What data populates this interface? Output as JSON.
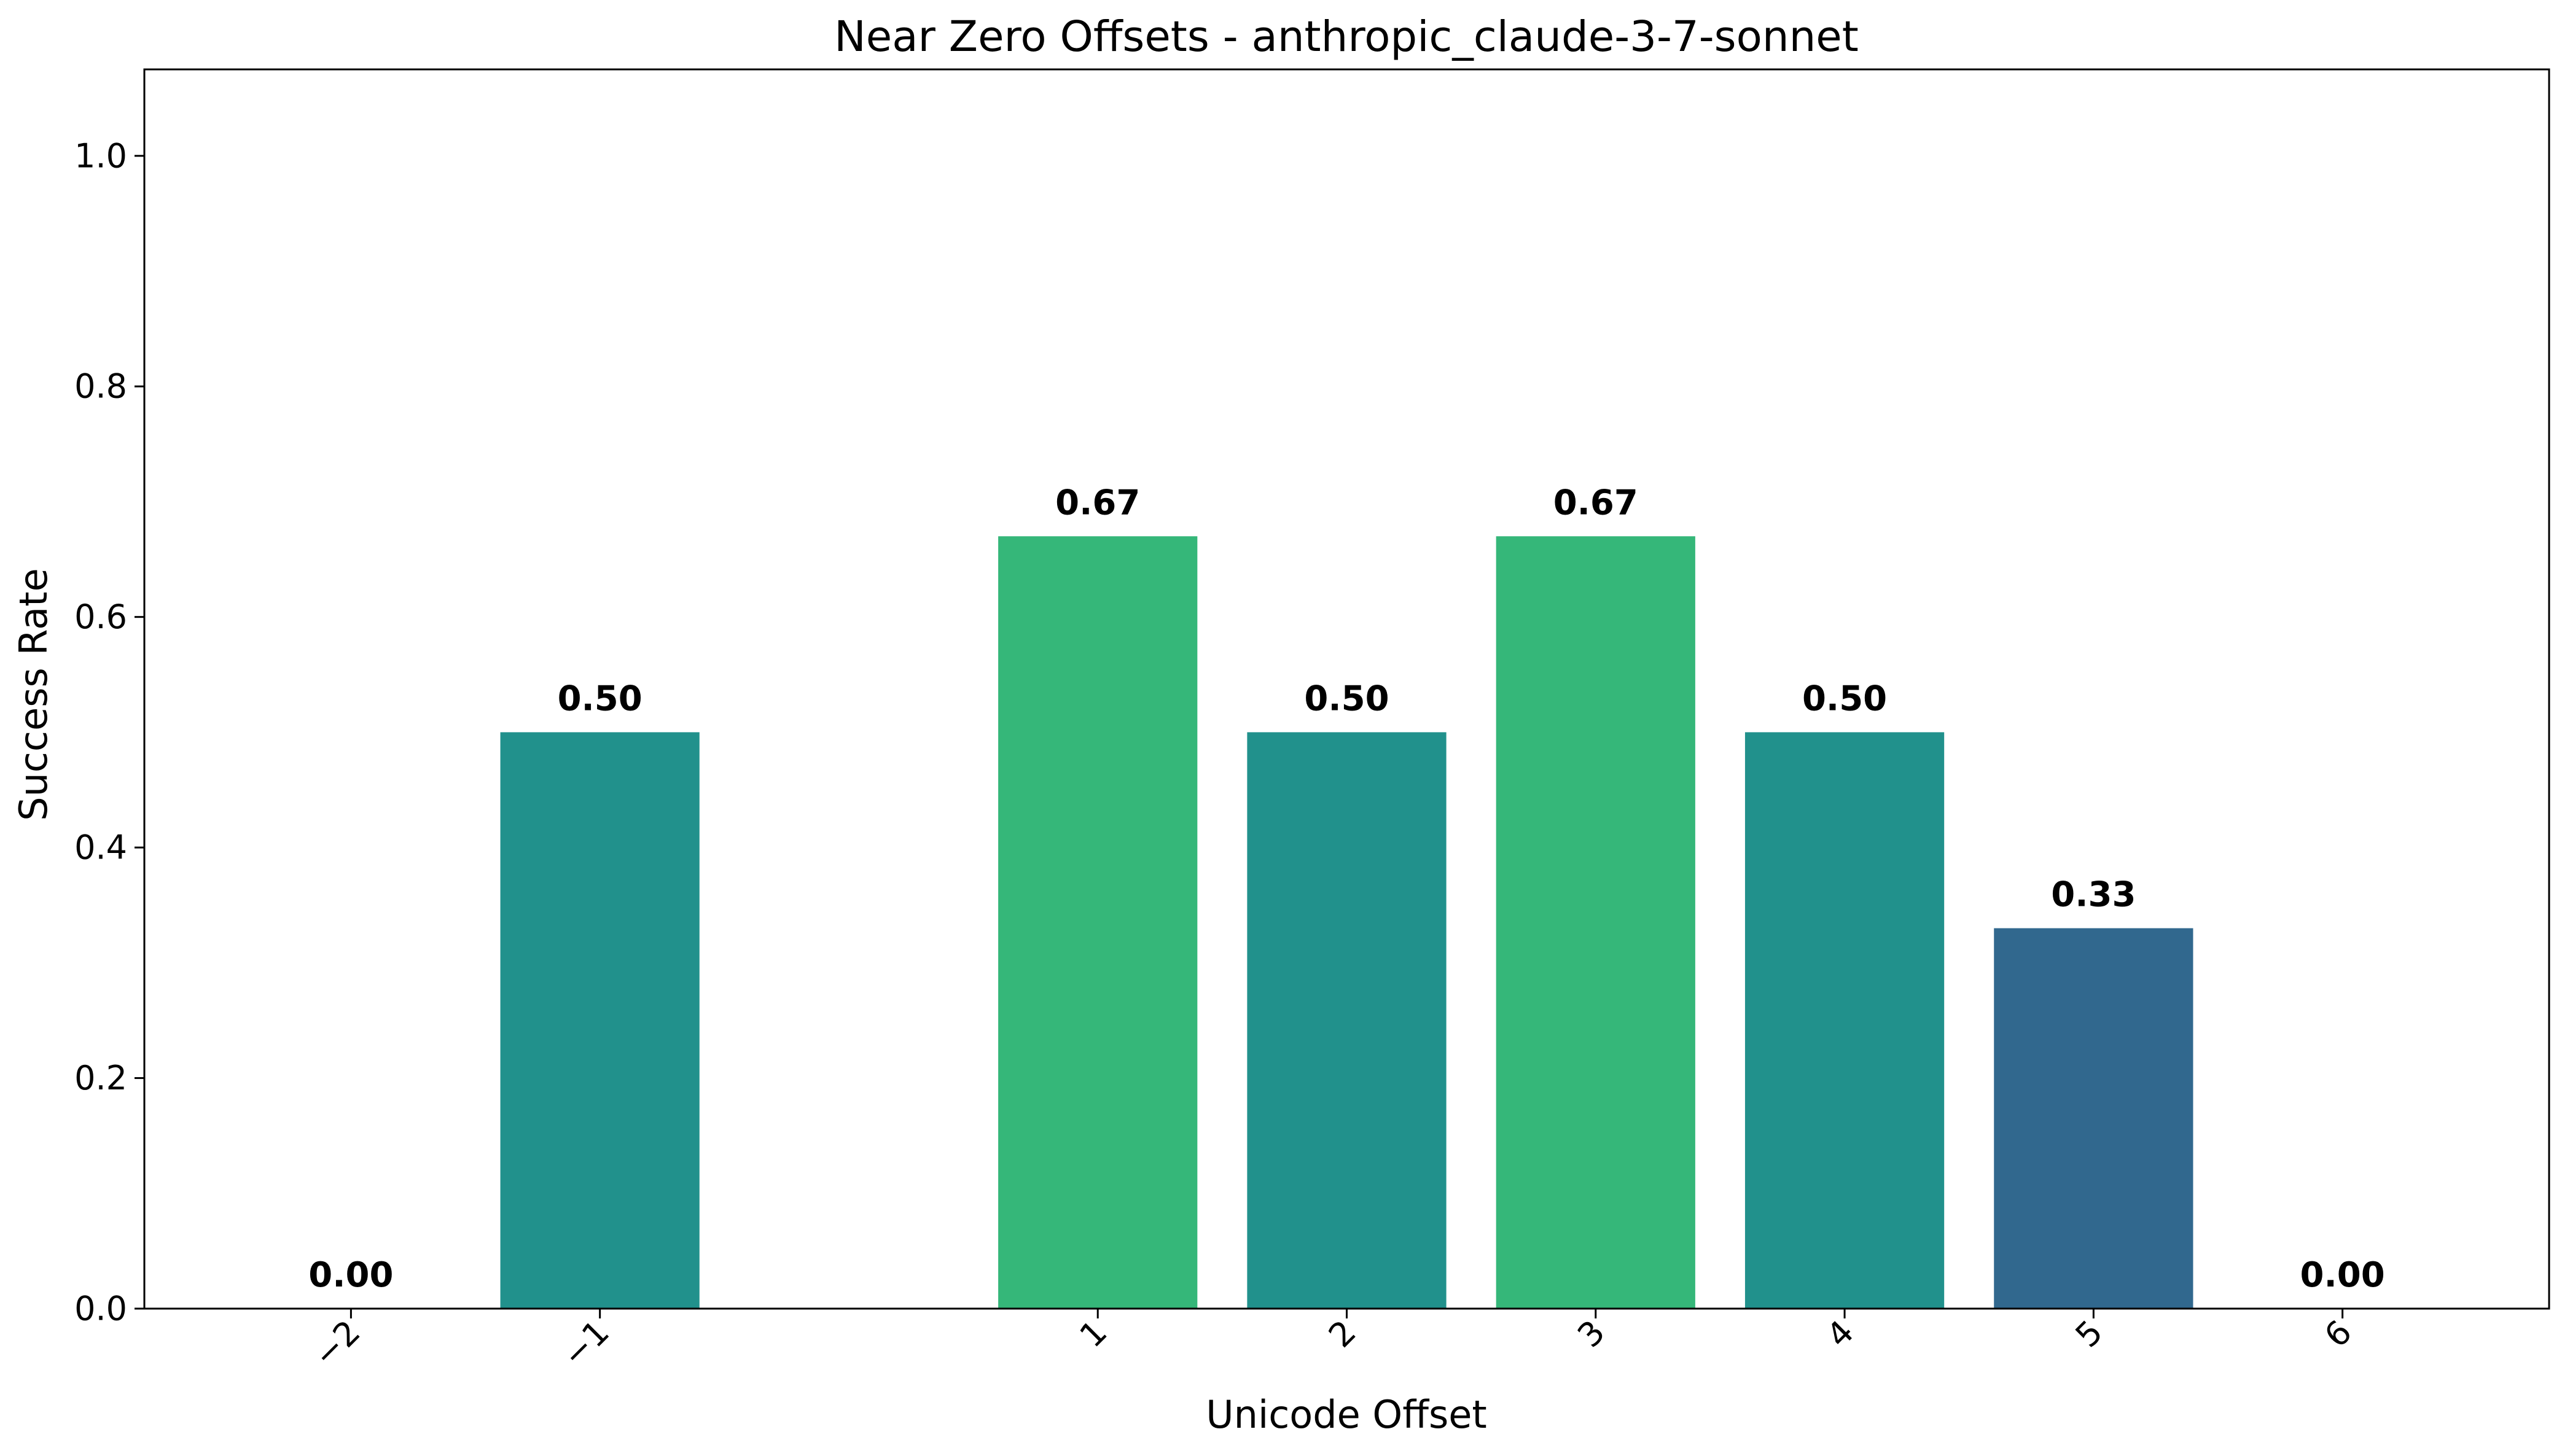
{
  "chart_data": {
    "type": "bar",
    "title": "Near Zero Offsets - anthropic_claude-3-7-sonnet",
    "xlabel": "Unicode Offset",
    "ylabel": "Success Rate",
    "x": [
      -2,
      -1,
      1,
      2,
      3,
      4,
      5,
      6
    ],
    "x_tick_labels": [
      "−2",
      "−1",
      "1",
      "2",
      "3",
      "4",
      "5",
      "6"
    ],
    "values": [
      0.0,
      0.5,
      0.67,
      0.5,
      0.67,
      0.5,
      0.33,
      0.0
    ],
    "value_labels": [
      "0.00",
      "0.50",
      "0.67",
      "0.50",
      "0.67",
      "0.50",
      "0.33",
      "0.00"
    ],
    "colors": [
      "#440154",
      "#21918c",
      "#35b779",
      "#21918c",
      "#35b779",
      "#21918c",
      "#31688e",
      "#440154"
    ],
    "xlim": [
      -2.83,
      6.83
    ],
    "ylim": [
      0,
      1.075
    ],
    "y_ticks": [
      0.0,
      0.2,
      0.4,
      0.6,
      0.8,
      1.0
    ],
    "y_tick_labels": [
      "0.0",
      "0.2",
      "0.4",
      "0.6",
      "0.8",
      "1.0"
    ],
    "grid": false,
    "x_tick_rotation_deg": 45
  }
}
